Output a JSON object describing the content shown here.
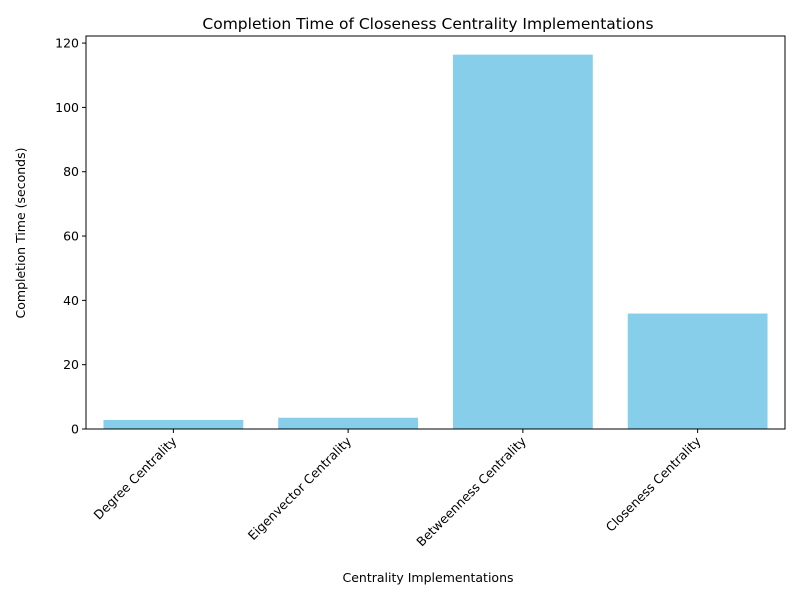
{
  "chart_data": {
    "type": "bar",
    "title": "Completion Time of Closeness Centrality Implementations",
    "xlabel": "Centrality Implementations",
    "ylabel": "Completion Time (seconds)",
    "categories": [
      "Degree Centrality",
      "Eigenvector Centrality",
      "Betweenness Centrality",
      "Closeness Centrality"
    ],
    "values": [
      2.8,
      3.5,
      116.4,
      35.9
    ],
    "ylim": [
      0,
      122.2
    ],
    "yticks": [
      0,
      20,
      40,
      60,
      80,
      100,
      120
    ],
    "ytick_labels": [
      "0",
      "20",
      "40",
      "60",
      "80",
      "100",
      "120"
    ],
    "bar_color": "#87ceeb",
    "grid": false,
    "legend": "none"
  }
}
